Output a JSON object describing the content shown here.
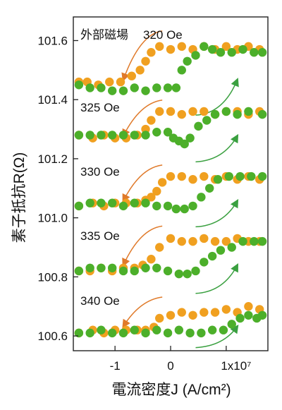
{
  "chart_data": {
    "type": "scatter",
    "xlabel": "電流密度J (A/cm²)",
    "ylabel": "素子抵抗R(Ω)",
    "x_ticks": [
      {
        "value": -1,
        "label": "-1"
      },
      {
        "value": 0,
        "label": "0"
      },
      {
        "value": 1,
        "label": "1x10⁷"
      }
    ],
    "y_ticks": [
      {
        "value": 100.6,
        "label": "100.6"
      },
      {
        "value": 100.8,
        "label": "100.8"
      },
      {
        "value": 101.0,
        "label": "101.0"
      },
      {
        "value": 101.2,
        "label": "101.2"
      },
      {
        "value": 101.4,
        "label": "101.4"
      },
      {
        "value": 101.6,
        "label": "101.6"
      }
    ],
    "xlim": [
      -1.75,
      1.75
    ],
    "ylim": [
      100.55,
      101.68
    ],
    "colors": {
      "sweep_down": "#f0a020",
      "sweep_up": "#4caf2a",
      "arrow_down": "#e07a2a",
      "arrow_up": "#3aa040",
      "axis": "#222222"
    },
    "annotations": [
      "外部磁場",
      "320 Oe",
      "325 Oe",
      "330 Oe",
      "335 Oe",
      "340 Oe"
    ],
    "series": [
      {
        "group": "320 Oe",
        "sweep": "down",
        "color": "orange",
        "x": [
          1.6,
          1.4,
          1.2,
          1.0,
          0.8,
          0.6,
          0.4,
          0.2,
          0.0,
          -0.2,
          -0.35,
          -0.45,
          -0.55,
          -0.7,
          -0.9,
          -1.1,
          -1.3,
          -1.5,
          -1.65
        ],
        "y": [
          101.57,
          101.58,
          101.57,
          101.58,
          101.57,
          101.58,
          101.57,
          101.58,
          101.57,
          101.58,
          101.56,
          101.53,
          101.5,
          101.48,
          101.46,
          101.46,
          101.45,
          101.46,
          101.46
        ]
      },
      {
        "group": "320 Oe",
        "sweep": "up",
        "color": "green",
        "x": [
          -1.65,
          -1.45,
          -1.25,
          -1.05,
          -0.85,
          -0.65,
          -0.45,
          -0.25,
          -0.05,
          0.1,
          0.2,
          0.3,
          0.45,
          0.6,
          0.75,
          0.9,
          1.1,
          1.3,
          1.5,
          1.65
        ],
        "y": [
          101.45,
          101.44,
          101.44,
          101.43,
          101.43,
          101.44,
          101.43,
          101.44,
          101.44,
          101.44,
          101.5,
          101.53,
          101.55,
          101.58,
          101.57,
          101.56,
          101.56,
          101.57,
          101.56,
          101.56
        ]
      },
      {
        "group": "325 Oe",
        "sweep": "down",
        "color": "orange",
        "x": [
          1.6,
          1.4,
          1.2,
          1.0,
          0.8,
          0.6,
          0.4,
          0.2,
          0.0,
          -0.2,
          -0.35,
          -0.45,
          -0.6,
          -0.8,
          -1.0,
          -1.2,
          -1.4,
          -1.65
        ],
        "y": [
          101.36,
          101.35,
          101.36,
          101.36,
          101.35,
          101.36,
          101.36,
          101.35,
          101.36,
          101.36,
          101.33,
          101.3,
          101.28,
          101.27,
          101.27,
          101.28,
          101.27,
          101.28
        ]
      },
      {
        "group": "325 Oe",
        "sweep": "up",
        "color": "green",
        "x": [
          -1.65,
          -1.45,
          -1.25,
          -1.05,
          -0.85,
          -0.65,
          -0.45,
          -0.25,
          -0.05,
          0.05,
          0.15,
          0.25,
          0.35,
          0.5,
          0.65,
          0.8,
          1.0,
          1.2,
          1.4,
          1.65
        ],
        "y": [
          101.28,
          101.28,
          101.28,
          101.28,
          101.28,
          101.28,
          101.28,
          101.29,
          101.29,
          101.27,
          101.26,
          101.25,
          101.27,
          101.31,
          101.33,
          101.35,
          101.36,
          101.35,
          101.36,
          101.35
        ]
      },
      {
        "group": "330 Oe",
        "sweep": "down",
        "color": "orange",
        "x": [
          1.6,
          1.4,
          1.2,
          1.0,
          0.8,
          0.6,
          0.4,
          0.2,
          0.0,
          -0.15,
          -0.25,
          -0.35,
          -0.45,
          -0.6,
          -0.8,
          -1.0,
          -1.2,
          -1.4,
          -1.65
        ],
        "y": [
          101.13,
          101.14,
          101.13,
          101.14,
          101.13,
          101.14,
          101.13,
          101.14,
          101.14,
          101.12,
          101.09,
          101.07,
          101.06,
          101.05,
          101.05,
          101.05,
          101.04,
          101.05,
          101.04
        ]
      },
      {
        "group": "330 Oe",
        "sweep": "up",
        "color": "green",
        "x": [
          -1.65,
          -1.45,
          -1.25,
          -1.05,
          -0.85,
          -0.65,
          -0.45,
          -0.25,
          -0.05,
          0.1,
          0.25,
          0.4,
          0.55,
          0.7,
          0.85,
          1.05,
          1.25,
          1.45,
          1.65
        ],
        "y": [
          101.04,
          101.05,
          101.05,
          101.05,
          101.04,
          101.05,
          101.05,
          101.04,
          101.04,
          101.03,
          101.03,
          101.04,
          101.07,
          101.1,
          101.13,
          101.14,
          101.14,
          101.14,
          101.14
        ]
      },
      {
        "group": "335 Oe",
        "sweep": "down",
        "color": "orange",
        "x": [
          1.6,
          1.4,
          1.2,
          1.0,
          0.8,
          0.6,
          0.4,
          0.2,
          0.0,
          -0.2,
          -0.35,
          -0.5,
          -0.65,
          -0.85,
          -1.05,
          -1.25,
          -1.45,
          -1.65
        ],
        "y": [
          100.92,
          100.92,
          100.93,
          100.92,
          100.92,
          100.93,
          100.92,
          100.92,
          100.93,
          100.9,
          100.86,
          100.84,
          100.83,
          100.83,
          100.82,
          100.83,
          100.82,
          100.82
        ]
      },
      {
        "group": "335 Oe",
        "sweep": "up",
        "color": "green",
        "x": [
          -1.65,
          -1.45,
          -1.25,
          -1.05,
          -0.85,
          -0.65,
          -0.45,
          -0.25,
          -0.05,
          0.15,
          0.3,
          0.45,
          0.6,
          0.75,
          0.9,
          1.1,
          1.3,
          1.5,
          1.65
        ],
        "y": [
          100.82,
          100.83,
          100.83,
          100.83,
          100.82,
          100.82,
          100.83,
          100.83,
          100.82,
          100.81,
          100.81,
          100.82,
          100.85,
          100.87,
          100.89,
          100.9,
          100.92,
          100.92,
          100.92
        ]
      },
      {
        "group": "340 Oe",
        "sweep": "down",
        "color": "orange",
        "x": [
          1.6,
          1.4,
          1.2,
          1.0,
          0.8,
          0.6,
          0.4,
          0.2,
          0.0,
          -0.2,
          -0.3,
          -0.45,
          -0.6,
          -0.8,
          -1.0,
          -1.2,
          -1.4,
          -1.65
        ],
        "y": [
          100.69,
          100.7,
          100.68,
          100.69,
          100.68,
          100.68,
          100.67,
          100.68,
          100.67,
          100.66,
          100.63,
          100.62,
          100.62,
          100.62,
          100.62,
          100.61,
          100.62,
          100.61
        ]
      },
      {
        "group": "340 Oe",
        "sweep": "up",
        "color": "green",
        "x": [
          -1.65,
          -1.45,
          -1.25,
          -1.05,
          -0.85,
          -0.65,
          -0.45,
          -0.25,
          -0.05,
          0.15,
          0.35,
          0.55,
          0.75,
          0.95,
          1.1,
          1.25,
          1.4,
          1.55,
          1.65
        ],
        "y": [
          100.61,
          100.61,
          100.62,
          100.61,
          100.61,
          100.62,
          100.61,
          100.62,
          100.61,
          100.62,
          100.61,
          100.61,
          100.62,
          100.62,
          100.64,
          100.66,
          100.67,
          100.66,
          100.67
        ]
      }
    ]
  }
}
